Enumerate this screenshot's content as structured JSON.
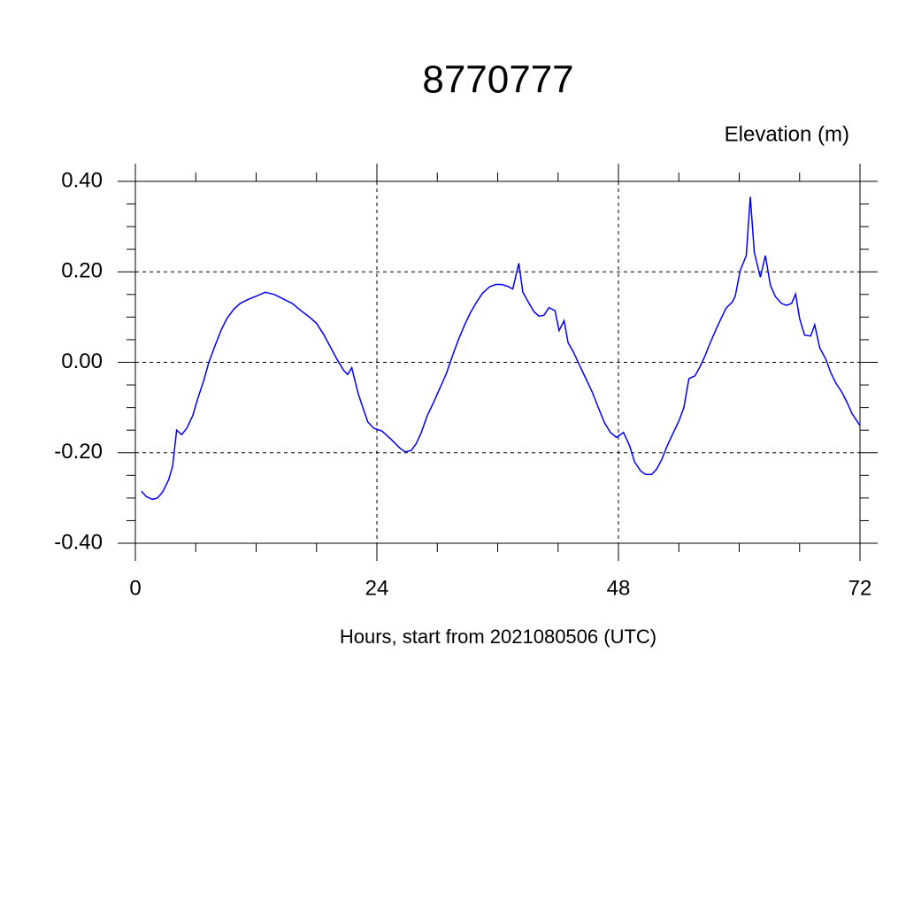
{
  "chart_data": {
    "type": "line",
    "title": "8770777",
    "ylabel": "Elevation (m)",
    "xlabel": "Hours, start from 2021080506 (UTC)",
    "xlim": [
      0,
      72
    ],
    "xticks": [
      0,
      24,
      48,
      72
    ],
    "xminorticks": [
      6,
      12,
      18,
      30,
      36,
      42,
      54,
      60,
      66
    ],
    "ylim": [
      -0.4,
      0.4
    ],
    "yticks": [
      {
        "value": -0.4,
        "label": "-0.40"
      },
      {
        "value": -0.2,
        "label": "-0.20"
      },
      {
        "value": 0,
        "label": "0.00"
      },
      {
        "value": 0.2,
        "label": "0.20"
      },
      {
        "value": 0.4,
        "label": "0.40"
      }
    ],
    "yminorticks": [
      -0.35,
      -0.3,
      -0.25,
      -0.15,
      -0.1,
      -0.05,
      0.05,
      0.1,
      0.15,
      0.25,
      0.3,
      0.35
    ],
    "grid": true,
    "x": [
      0.6,
      1.1,
      1.7,
      2.2,
      2.7,
      3.3,
      3.7,
      4.1,
      4.6,
      5.1,
      5.7,
      6.2,
      6.8,
      7.3,
      7.9,
      8.5,
      9.1,
      9.8,
      10.4,
      11.2,
      12.0,
      12.9,
      13.8,
      14.7,
      15.6,
      16.4,
      17.3,
      18.0,
      18.7,
      19.4,
      20.1,
      20.7,
      21.1,
      21.5,
      22.1,
      22.6,
      23.1,
      23.7,
      24.5,
      25.4,
      26.3,
      26.8,
      27.4,
      27.9,
      28.4,
      29.0,
      29.6,
      30.2,
      30.9,
      31.5,
      32.1,
      32.7,
      33.3,
      33.9,
      34.5,
      35.2,
      35.8,
      36.4,
      37.0,
      37.5,
      38.1,
      38.5,
      39.0,
      39.6,
      40.1,
      40.6,
      41.1,
      41.7,
      42.1,
      42.6,
      43.0,
      43.5,
      44.1,
      44.7,
      45.4,
      46.0,
      46.6,
      47.2,
      47.8,
      48.5,
      49.1,
      49.6,
      50.2,
      50.7,
      51.3,
      51.8,
      52.3,
      52.8,
      53.4,
      54.0,
      54.5,
      55.0,
      55.6,
      56.1,
      56.6,
      57.1,
      57.7,
      58.2,
      58.7,
      59.3,
      59.6,
      60.1,
      60.7,
      61.1,
      61.5,
      62.1,
      62.6,
      63.1,
      63.6,
      64.2,
      64.7,
      65.2,
      65.6,
      66.0,
      66.5,
      67.1,
      67.5,
      68.0,
      68.6,
      69.1,
      69.6,
      70.2,
      70.7,
      71.2,
      72.0
    ],
    "series": [
      {
        "color": "#0000ff",
        "values": [
          -0.285,
          -0.297,
          -0.303,
          -0.3,
          -0.287,
          -0.26,
          -0.23,
          -0.15,
          -0.16,
          -0.146,
          -0.118,
          -0.08,
          -0.04,
          0.0,
          0.036,
          0.07,
          0.097,
          0.118,
          0.13,
          0.139,
          0.146,
          0.155,
          0.15,
          0.14,
          0.13,
          0.115,
          0.1,
          0.086,
          0.062,
          0.033,
          0.004,
          -0.018,
          -0.027,
          -0.012,
          -0.066,
          -0.1,
          -0.132,
          -0.146,
          -0.152,
          -0.17,
          -0.19,
          -0.198,
          -0.195,
          -0.18,
          -0.156,
          -0.118,
          -0.09,
          -0.06,
          -0.025,
          0.014,
          0.05,
          0.082,
          0.11,
          0.133,
          0.153,
          0.167,
          0.172,
          0.172,
          0.168,
          0.162,
          0.219,
          0.155,
          0.135,
          0.112,
          0.102,
          0.104,
          0.121,
          0.114,
          0.07,
          0.092,
          0.043,
          0.024,
          -0.005,
          -0.033,
          -0.066,
          -0.1,
          -0.133,
          -0.155,
          -0.166,
          -0.155,
          -0.184,
          -0.22,
          -0.24,
          -0.248,
          -0.248,
          -0.236,
          -0.215,
          -0.187,
          -0.158,
          -0.13,
          -0.1,
          -0.036,
          -0.03,
          -0.01,
          0.014,
          0.042,
          0.073,
          0.097,
          0.12,
          0.133,
          0.146,
          0.203,
          0.236,
          0.366,
          0.243,
          0.188,
          0.236,
          0.17,
          0.145,
          0.13,
          0.126,
          0.13,
          0.151,
          0.097,
          0.06,
          0.058,
          0.083,
          0.032,
          0.007,
          -0.023,
          -0.046,
          -0.066,
          -0.088,
          -0.113,
          -0.14
        ]
      }
    ]
  }
}
